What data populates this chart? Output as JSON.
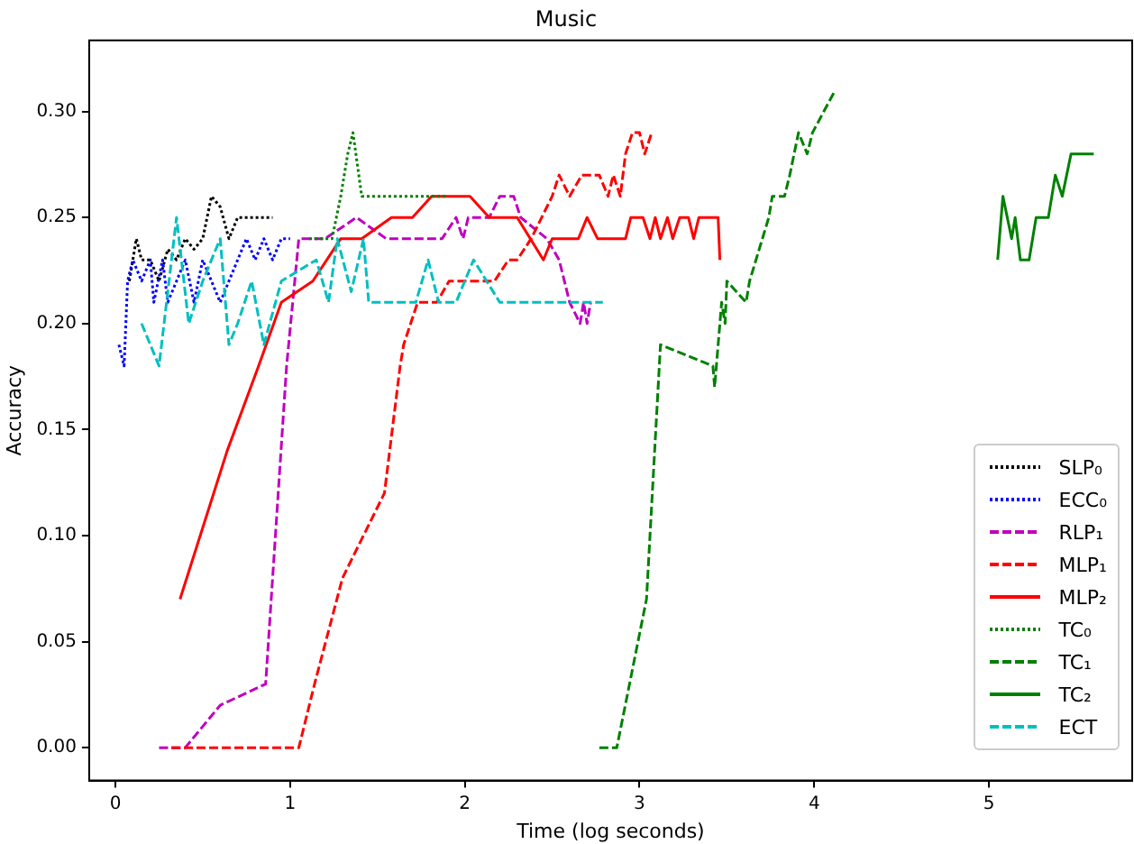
{
  "chart_data": {
    "type": "line",
    "title": "Music",
    "xlabel": "Time (log seconds)",
    "ylabel": "Accuracy",
    "xlim": [
      -0.15,
      5.82
    ],
    "ylim": [
      -0.0155,
      0.3335
    ],
    "xticks": [
      0,
      1,
      2,
      3,
      4,
      5
    ],
    "yticks": [
      {
        "value": 0,
        "label": "0.00"
      },
      {
        "value": 0.05,
        "label": "0.05"
      },
      {
        "value": 0.1,
        "label": "0.10"
      },
      {
        "value": 0.15,
        "label": "0.15"
      },
      {
        "value": 0.2,
        "label": "0.20"
      },
      {
        "value": 0.25,
        "label": "0.25"
      },
      {
        "value": 0.3,
        "label": "0.30"
      }
    ],
    "grid": false,
    "legend": "bottom right",
    "marker": "none",
    "series": [
      {
        "name": "SLP₀",
        "color": "#000000",
        "line_style": "dotted",
        "x": [
          0.08,
          0.12,
          0.15,
          0.2,
          0.25,
          0.3,
          0.35,
          0.4,
          0.45,
          0.5,
          0.55,
          0.6,
          0.65,
          0.7,
          0.9
        ],
        "values": [
          0.22,
          0.24,
          0.23,
          0.23,
          0.22,
          0.235,
          0.23,
          0.24,
          0.235,
          0.24,
          0.26,
          0.255,
          0.24,
          0.25,
          0.25
        ]
      },
      {
        "name": "ECC₀",
        "color": "#0000ff",
        "line_style": "dotted",
        "x": [
          0.02,
          0.05,
          0.07,
          0.1,
          0.15,
          0.2,
          0.22,
          0.27,
          0.3,
          0.35,
          0.4,
          0.45,
          0.5,
          0.55,
          0.6,
          0.65,
          0.7,
          0.75,
          0.8,
          0.85,
          0.9,
          0.95,
          1.0
        ],
        "values": [
          0.19,
          0.18,
          0.22,
          0.23,
          0.22,
          0.23,
          0.21,
          0.23,
          0.21,
          0.22,
          0.23,
          0.21,
          0.23,
          0.22,
          0.21,
          0.22,
          0.23,
          0.24,
          0.23,
          0.24,
          0.23,
          0.24,
          0.24
        ]
      },
      {
        "name": "RLP₁",
        "color": "#bf00bf",
        "line_style": "dashed",
        "x": [
          0.25,
          0.4,
          0.6,
          0.86,
          0.98,
          1.05,
          1.2,
          1.38,
          1.55,
          1.87,
          1.95,
          1.99,
          2.02,
          2.14,
          2.2,
          2.28,
          2.32,
          2.47,
          2.54,
          2.6,
          2.66,
          2.68,
          2.7,
          2.72
        ],
        "values": [
          0,
          0,
          0.02,
          0.03,
          0.18,
          0.24,
          0.24,
          0.25,
          0.24,
          0.24,
          0.25,
          0.24,
          0.25,
          0.25,
          0.26,
          0.26,
          0.25,
          0.24,
          0.23,
          0.21,
          0.2,
          0.21,
          0.2,
          0.21
        ]
      },
      {
        "name": "MLP₁",
        "color": "#ff0000",
        "line_style": "dashed",
        "x": [
          0.32,
          1.05,
          1.14,
          1.3,
          1.54,
          1.63,
          1.65,
          1.73,
          1.84,
          1.91,
          2.17,
          2.25,
          2.3,
          2.38,
          2.5,
          2.54,
          2.6,
          2.67,
          2.77,
          2.82,
          2.85,
          2.89,
          2.92,
          2.96,
          3.0,
          3.03,
          3.07
        ],
        "values": [
          0,
          0,
          0.03,
          0.08,
          0.12,
          0.18,
          0.19,
          0.21,
          0.21,
          0.22,
          0.22,
          0.23,
          0.23,
          0.24,
          0.26,
          0.27,
          0.26,
          0.27,
          0.27,
          0.26,
          0.27,
          0.26,
          0.28,
          0.29,
          0.29,
          0.28,
          0.29
        ]
      },
      {
        "name": "MLP₂",
        "color": "#ff0000",
        "line_style": "solid",
        "x": [
          0.37,
          0.64,
          0.82,
          0.95,
          1.13,
          1.29,
          1.41,
          1.58,
          1.7,
          1.81,
          2.03,
          2.14,
          2.3,
          2.45,
          2.5,
          2.65,
          2.7,
          2.76,
          2.92,
          2.95,
          3.02,
          3.06,
          3.09,
          3.12,
          3.16,
          3.19,
          3.23,
          3.28,
          3.31,
          3.34,
          3.45,
          3.46
        ],
        "values": [
          0.07,
          0.14,
          0.18,
          0.21,
          0.22,
          0.24,
          0.24,
          0.25,
          0.25,
          0.26,
          0.26,
          0.25,
          0.25,
          0.23,
          0.24,
          0.24,
          0.25,
          0.24,
          0.24,
          0.25,
          0.25,
          0.24,
          0.25,
          0.24,
          0.25,
          0.24,
          0.25,
          0.25,
          0.24,
          0.25,
          0.25,
          0.23
        ]
      },
      {
        "name": "TC₀",
        "color": "#008000",
        "line_style": "dotted",
        "x": [
          1.11,
          1.24,
          1.29,
          1.33,
          1.36,
          1.41,
          1.9
        ],
        "values": [
          0.24,
          0.24,
          0.26,
          0.28,
          0.29,
          0.26,
          0.26
        ]
      },
      {
        "name": "TC₁",
        "color": "#008000",
        "line_style": "dashed",
        "x": [
          2.77,
          2.87,
          3.04,
          3.12,
          3.42,
          3.43,
          3.47,
          3.49,
          3.5,
          3.61,
          3.63,
          3.74,
          3.76,
          3.83,
          3.86,
          3.91,
          3.96,
          3.99,
          4.12
        ],
        "values": [
          0,
          0,
          0.07,
          0.19,
          0.18,
          0.17,
          0.21,
          0.2,
          0.22,
          0.21,
          0.22,
          0.25,
          0.26,
          0.26,
          0.27,
          0.29,
          0.28,
          0.29,
          0.31
        ]
      },
      {
        "name": "TC₂",
        "color": "#008000",
        "line_style": "solid",
        "x": [
          5.05,
          5.08,
          5.13,
          5.15,
          5.18,
          5.23,
          5.27,
          5.34,
          5.38,
          5.42,
          5.47,
          5.6
        ],
        "values": [
          0.23,
          0.26,
          0.24,
          0.25,
          0.23,
          0.23,
          0.25,
          0.25,
          0.27,
          0.26,
          0.28,
          0.28
        ]
      },
      {
        "name": "ECT",
        "color": "#00bfbf",
        "line_style": "dashed",
        "x": [
          0.15,
          0.25,
          0.35,
          0.42,
          0.5,
          0.6,
          0.65,
          0.7,
          0.78,
          0.85,
          0.95,
          1.05,
          1.15,
          1.22,
          1.27,
          1.35,
          1.42,
          1.45,
          1.72,
          1.79,
          1.85,
          1.95,
          2.05,
          2.2,
          2.79
        ],
        "values": [
          0.2,
          0.18,
          0.25,
          0.2,
          0.22,
          0.24,
          0.19,
          0.2,
          0.22,
          0.19,
          0.22,
          0.225,
          0.23,
          0.21,
          0.24,
          0.215,
          0.24,
          0.21,
          0.21,
          0.23,
          0.21,
          0.21,
          0.23,
          0.21,
          0.21
        ]
      }
    ]
  }
}
